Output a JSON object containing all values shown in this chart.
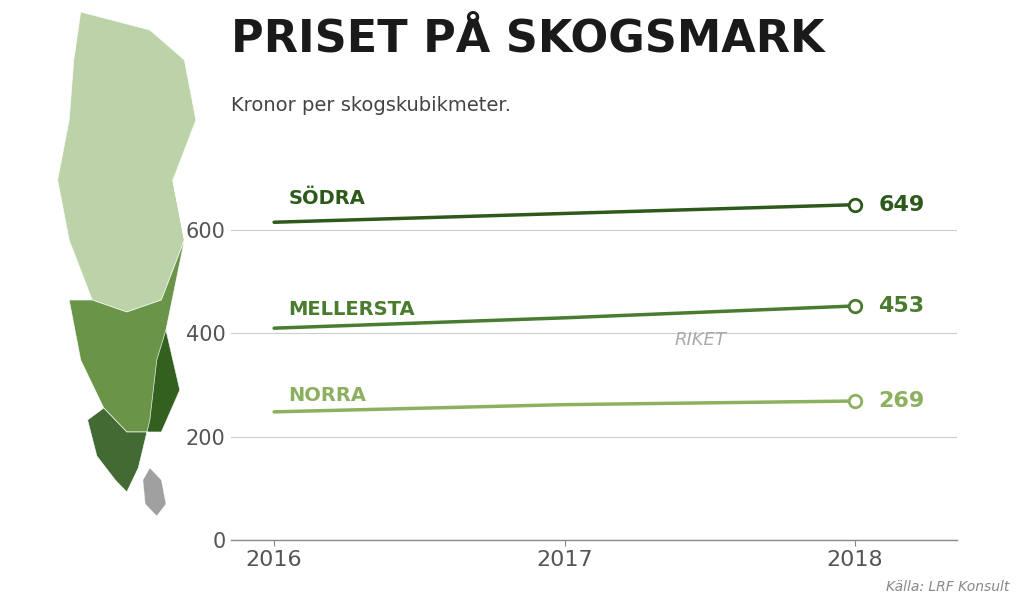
{
  "title": "PRISET PÅ SKOGSMARK",
  "subtitle": "Kronor per skogskubikmeter.",
  "source": "Källa: LRF Konsult",
  "years": [
    2016,
    2017,
    2018
  ],
  "sodra": {
    "label": "SÖDRA",
    "values": [
      615,
      632,
      649
    ],
    "color": "#2d5a1b",
    "end_value": 649
  },
  "mellersta": {
    "label": "MELLERSTA",
    "values": [
      410,
      430,
      453
    ],
    "color": "#4a7c2f",
    "end_value": 453
  },
  "riket": {
    "label": "RIKET",
    "values": [
      410,
      430,
      453
    ],
    "color": "#aaaaaa"
  },
  "norra": {
    "label": "NORRA",
    "values": [
      248,
      262,
      269
    ],
    "color": "#8db060",
    "end_value": 269
  },
  "yticks": [
    0,
    200,
    400,
    600
  ],
  "ylim": [
    0,
    720
  ],
  "xlim": [
    2015.85,
    2018.35
  ],
  "plot_bg": "#ffffff",
  "left_bg": "#c8dba8",
  "title_color": "#1a1a1a",
  "subtitle_color": "#444444",
  "source_color": "#888888",
  "tick_color": "#555555",
  "grid_color": "#cccccc",
  "title_fontsize": 32,
  "subtitle_fontsize": 14,
  "label_fontsize": 14,
  "value_fontsize": 16,
  "ytick_fontsize": 15,
  "xtick_fontsize": 16,
  "source_fontsize": 10,
  "line_width": 2.5
}
